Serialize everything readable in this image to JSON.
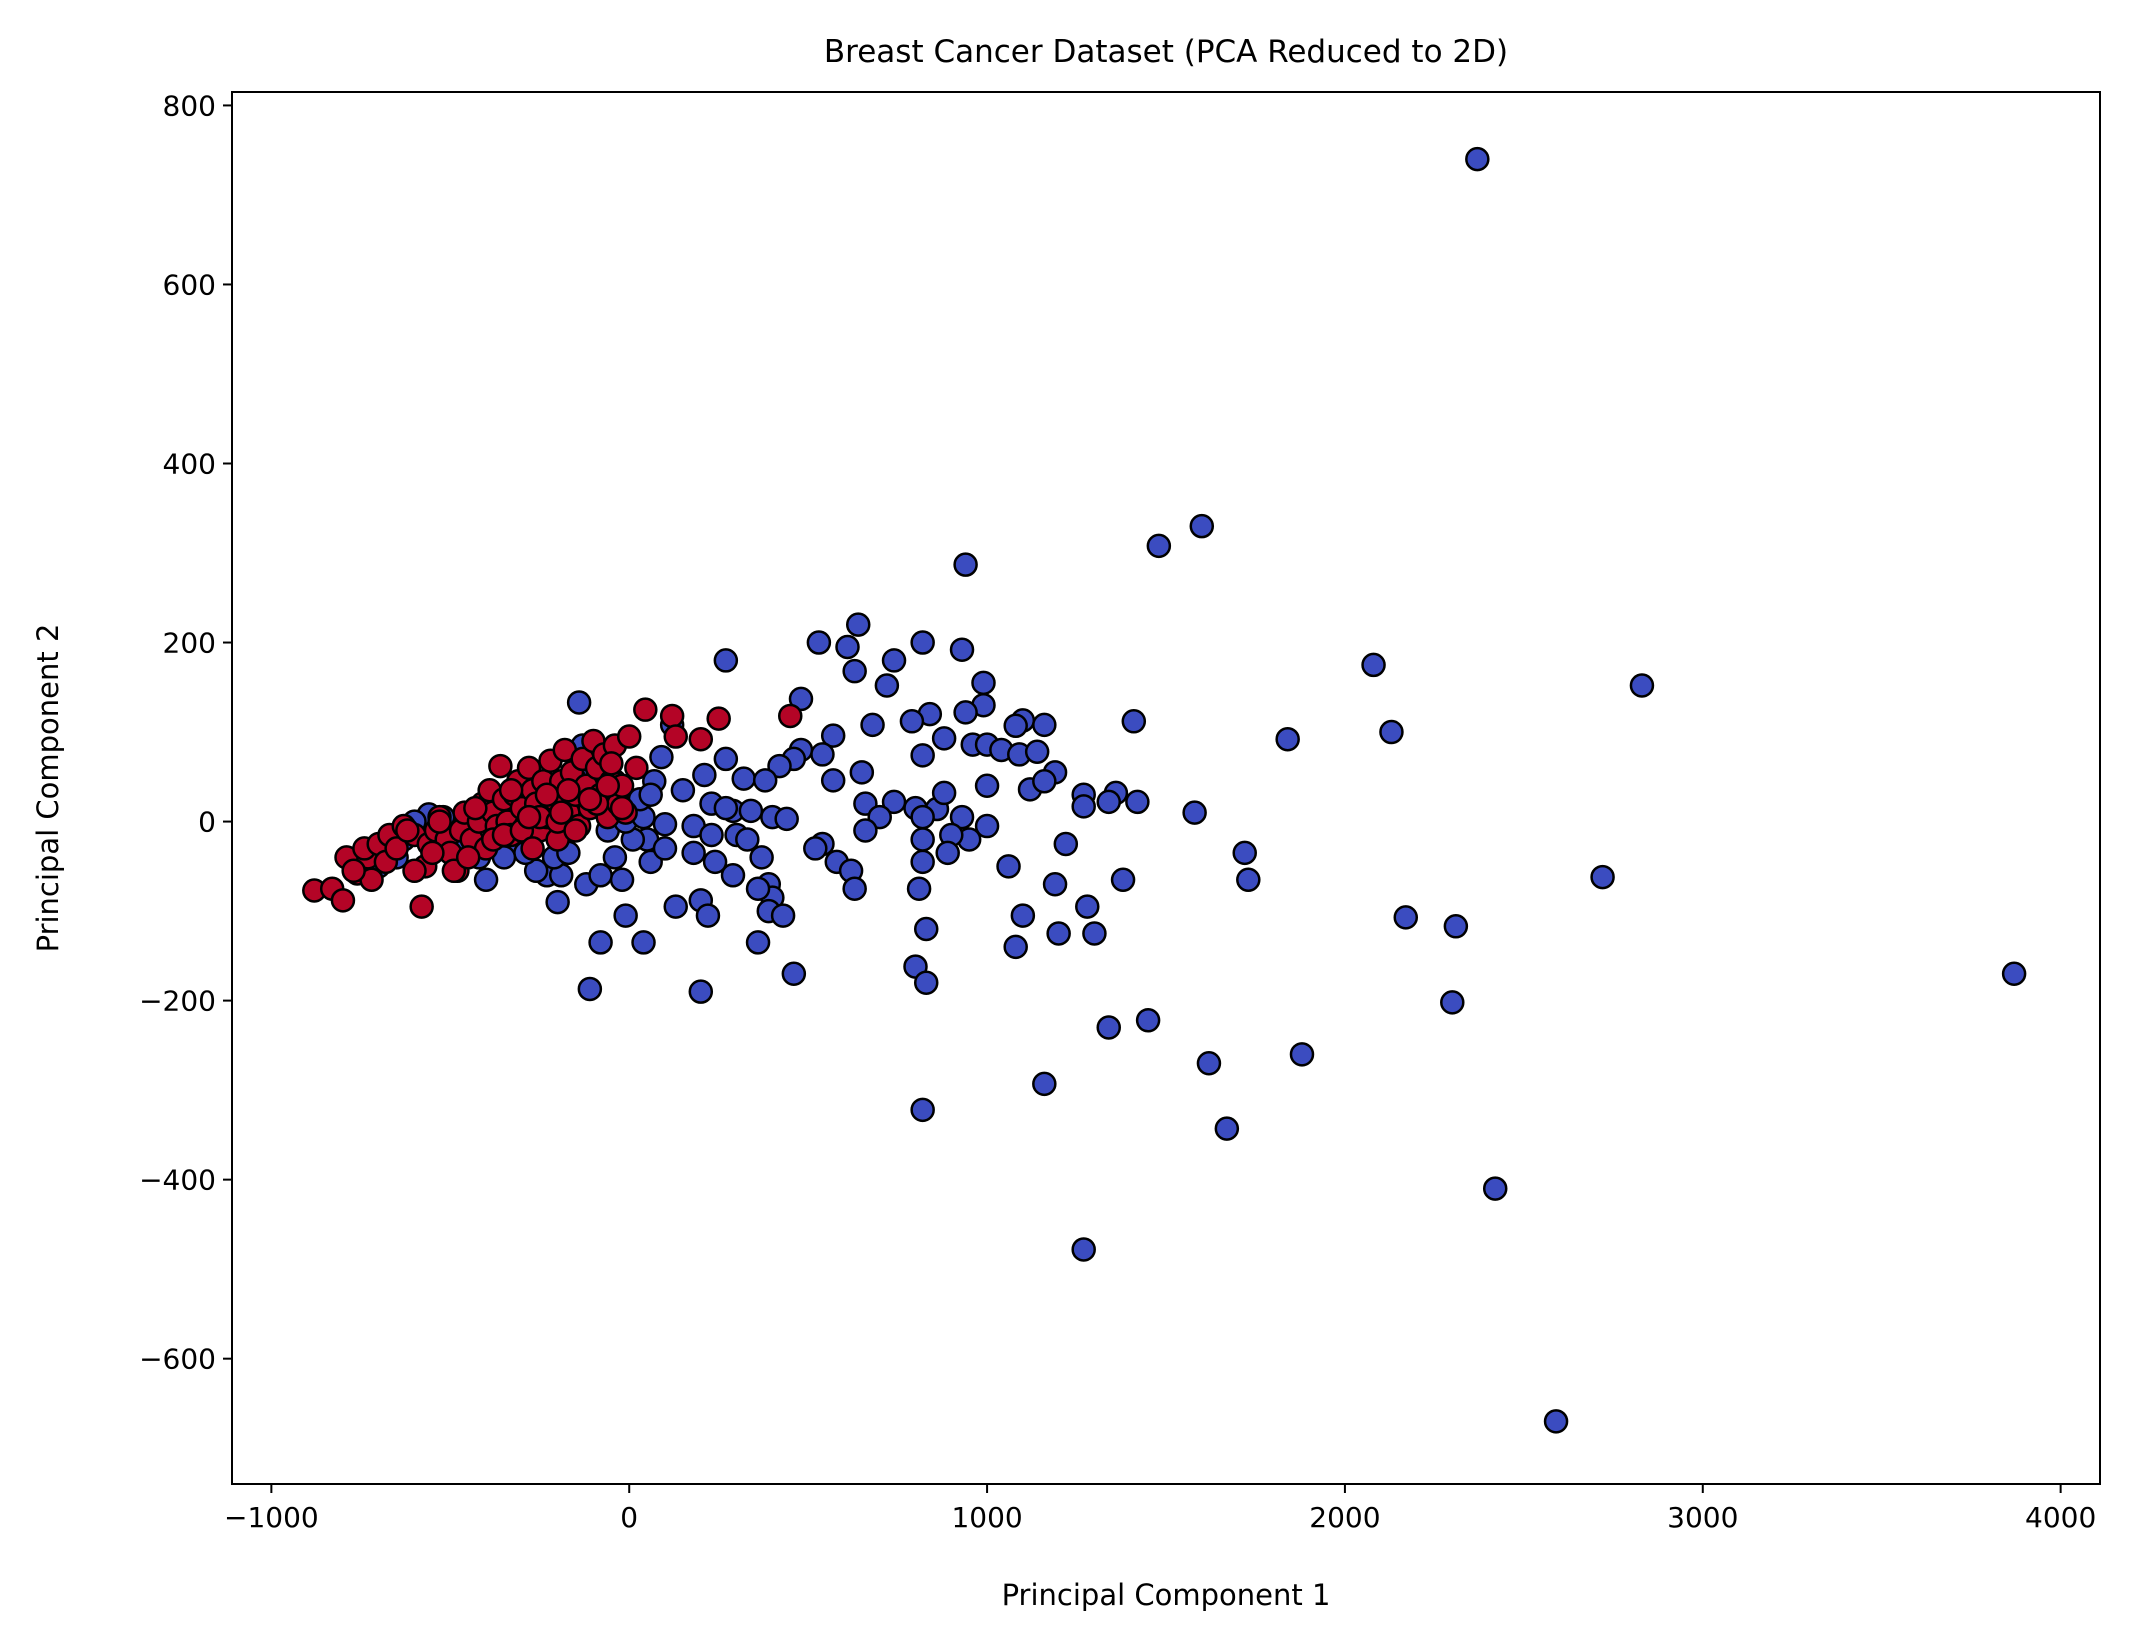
{
  "chart_data": {
    "type": "scatter",
    "title": "Breast Cancer Dataset (PCA Reduced to 2D)",
    "xlabel": "Principal Component 1",
    "ylabel": "Principal Component 2",
    "xlim": [
      -1110,
      4110
    ],
    "ylim": [
      -740,
      815
    ],
    "xticks": [
      -1000,
      0,
      1000,
      2000,
      3000,
      4000
    ],
    "yticks": [
      -600,
      -400,
      -200,
      0,
      200,
      400,
      600,
      800
    ],
    "xtick_labels": [
      "−1000",
      "0",
      "1000",
      "2000",
      "3000",
      "4000"
    ],
    "ytick_labels": [
      "−600",
      "−400",
      "−200",
      "0",
      "200",
      "400",
      "600",
      "800"
    ],
    "grid": false,
    "legend": "none",
    "series": [
      {
        "color": "#3b4cc0",
        "points": [
          [
            2370,
            740
          ],
          [
            1600,
            330
          ],
          [
            1480,
            308
          ],
          [
            940,
            287
          ],
          [
            640,
            220
          ],
          [
            530,
            200
          ],
          [
            610,
            195
          ],
          [
            820,
            200
          ],
          [
            930,
            192
          ],
          [
            740,
            180
          ],
          [
            270,
            180
          ],
          [
            630,
            168
          ],
          [
            720,
            152
          ],
          [
            990,
            155
          ],
          [
            2080,
            175
          ],
          [
            2830,
            152
          ],
          [
            480,
            137
          ],
          [
            990,
            130
          ],
          [
            940,
            122
          ],
          [
            840,
            120
          ],
          [
            680,
            108
          ],
          [
            790,
            112
          ],
          [
            1100,
            113
          ],
          [
            1080,
            107
          ],
          [
            1160,
            108
          ],
          [
            1410,
            112
          ],
          [
            2130,
            100
          ],
          [
            1840,
            92
          ],
          [
            880,
            93
          ],
          [
            960,
            86
          ],
          [
            1000,
            86
          ],
          [
            1040,
            80
          ],
          [
            1090,
            75
          ],
          [
            1140,
            78
          ],
          [
            820,
            74
          ],
          [
            570,
            96
          ],
          [
            480,
            80
          ],
          [
            540,
            75
          ],
          [
            460,
            70
          ],
          [
            420,
            62
          ],
          [
            270,
            70
          ],
          [
            650,
            55
          ],
          [
            1190,
            55
          ],
          [
            1000,
            40
          ],
          [
            1120,
            36
          ],
          [
            1160,
            45
          ],
          [
            1270,
            30
          ],
          [
            1360,
            32
          ],
          [
            1340,
            22
          ],
          [
            1420,
            22
          ],
          [
            740,
            22
          ],
          [
            660,
            20
          ],
          [
            800,
            15
          ],
          [
            860,
            14
          ],
          [
            880,
            32
          ],
          [
            570,
            46
          ],
          [
            320,
            48
          ],
          [
            380,
            46
          ],
          [
            230,
            20
          ],
          [
            290,
            12
          ],
          [
            340,
            12
          ],
          [
            210,
            52
          ],
          [
            150,
            35
          ],
          [
            90,
            72
          ],
          [
            70,
            45
          ],
          [
            -140,
            133
          ],
          [
            -100,
            60
          ],
          [
            -130,
            85
          ],
          [
            -90,
            70
          ],
          [
            -40,
            45
          ],
          [
            120,
            108
          ],
          [
            270,
            15
          ],
          [
            400,
            5
          ],
          [
            440,
            3
          ],
          [
            700,
            5
          ],
          [
            820,
            5
          ],
          [
            930,
            5
          ],
          [
            1000,
            -5
          ],
          [
            1580,
            10
          ],
          [
            1270,
            17
          ],
          [
            950,
            -20
          ],
          [
            900,
            -15
          ],
          [
            820,
            -20
          ],
          [
            540,
            -25
          ],
          [
            520,
            -30
          ],
          [
            300,
            -15
          ],
          [
            330,
            -20
          ],
          [
            180,
            -5
          ],
          [
            230,
            -15
          ],
          [
            100,
            -3
          ],
          [
            50,
            -20
          ],
          [
            60,
            -45
          ],
          [
            100,
            -30
          ],
          [
            180,
            -35
          ],
          [
            240,
            -45
          ],
          [
            290,
            -60
          ],
          [
            370,
            -40
          ],
          [
            390,
            -70
          ],
          [
            400,
            -85
          ],
          [
            360,
            -75
          ],
          [
            -230,
            -60
          ],
          [
            -260,
            -55
          ],
          [
            -190,
            -60
          ],
          [
            -210,
            -40
          ],
          [
            -120,
            -70
          ],
          [
            -20,
            -65
          ],
          [
            -80,
            -60
          ],
          [
            -40,
            -40
          ],
          [
            -400,
            -65
          ],
          [
            580,
            -45
          ],
          [
            620,
            -55
          ],
          [
            660,
            -10
          ],
          [
            630,
            -75
          ],
          [
            810,
            -75
          ],
          [
            820,
            -45
          ],
          [
            890,
            -35
          ],
          [
            1060,
            -50
          ],
          [
            1190,
            -70
          ],
          [
            1220,
            -25
          ],
          [
            1380,
            -65
          ],
          [
            1720,
            -35
          ],
          [
            1730,
            -65
          ],
          [
            2720,
            -62
          ],
          [
            2170,
            -107
          ],
          [
            2310,
            -117
          ],
          [
            3870,
            -170
          ],
          [
            2300,
            -202
          ],
          [
            200,
            -88
          ],
          [
            130,
            -95
          ],
          [
            -10,
            -105
          ],
          [
            220,
            -105
          ],
          [
            390,
            -100
          ],
          [
            430,
            -105
          ],
          [
            360,
            -135
          ],
          [
            40,
            -135
          ],
          [
            -80,
            -135
          ],
          [
            460,
            -170
          ],
          [
            830,
            -120
          ],
          [
            1100,
            -105
          ],
          [
            1200,
            -125
          ],
          [
            1280,
            -95
          ],
          [
            1300,
            -125
          ],
          [
            1080,
            -140
          ],
          [
            800,
            -162
          ],
          [
            830,
            -180
          ],
          [
            -110,
            -187
          ],
          [
            200,
            -190
          ],
          [
            1340,
            -230
          ],
          [
            1450,
            -222
          ],
          [
            1620,
            -270
          ],
          [
            1880,
            -260
          ],
          [
            820,
            -322
          ],
          [
            1160,
            -293
          ],
          [
            1670,
            -343
          ],
          [
            2420,
            -410
          ],
          [
            1270,
            -478
          ],
          [
            2590,
            -670
          ],
          [
            -200,
            -90
          ],
          [
            -170,
            -35
          ],
          [
            -60,
            -10
          ],
          [
            10,
            -20
          ],
          [
            -10,
            0
          ],
          [
            40,
            5
          ],
          [
            30,
            25
          ],
          [
            60,
            30
          ],
          [
            -50,
            20
          ],
          [
            -180,
            30
          ],
          [
            -240,
            10
          ],
          [
            -320,
            -30
          ],
          [
            -290,
            -35
          ],
          [
            -350,
            -40
          ],
          [
            -420,
            -40
          ],
          [
            -460,
            -30
          ],
          [
            -480,
            -10
          ],
          [
            -440,
            0
          ],
          [
            -520,
            5
          ],
          [
            -560,
            8
          ],
          [
            -600,
            0
          ],
          [
            -630,
            -20
          ],
          [
            -650,
            -40
          ],
          [
            -700,
            -50
          ]
        ]
      },
      {
        "color": "#b40426",
        "points": [
          [
            -880,
            -77
          ],
          [
            -830,
            -75
          ],
          [
            -800,
            -88
          ],
          [
            -760,
            -58
          ],
          [
            -730,
            -40
          ],
          [
            -720,
            -65
          ],
          [
            -790,
            -40
          ],
          [
            -770,
            -55
          ],
          [
            -740,
            -30
          ],
          [
            -700,
            -25
          ],
          [
            -680,
            -45
          ],
          [
            -670,
            -15
          ],
          [
            -650,
            -30
          ],
          [
            -630,
            -5
          ],
          [
            -600,
            -15
          ],
          [
            -580,
            -95
          ],
          [
            -570,
            -50
          ],
          [
            -560,
            -25
          ],
          [
            -540,
            -10
          ],
          [
            -530,
            5
          ],
          [
            -510,
            -20
          ],
          [
            -500,
            -35
          ],
          [
            -480,
            -55
          ],
          [
            -470,
            -10
          ],
          [
            -460,
            10
          ],
          [
            -440,
            -20
          ],
          [
            -420,
            0
          ],
          [
            -410,
            20
          ],
          [
            -400,
            -30
          ],
          [
            -390,
            35
          ],
          [
            -380,
            10
          ],
          [
            -370,
            -5
          ],
          [
            -360,
            62
          ],
          [
            -350,
            25
          ],
          [
            -340,
            0
          ],
          [
            -330,
            -15
          ],
          [
            -320,
            30
          ],
          [
            -310,
            45
          ],
          [
            -300,
            15
          ],
          [
            -290,
            -5
          ],
          [
            -280,
            60
          ],
          [
            -270,
            35
          ],
          [
            -260,
            20
          ],
          [
            -250,
            -10
          ],
          [
            -240,
            45
          ],
          [
            -230,
            5
          ],
          [
            -220,
            68
          ],
          [
            -210,
            25
          ],
          [
            -200,
            -20
          ],
          [
            -190,
            45
          ],
          [
            -180,
            80
          ],
          [
            -170,
            10
          ],
          [
            -160,
            55
          ],
          [
            -150,
            30
          ],
          [
            -140,
            -5
          ],
          [
            -130,
            70
          ],
          [
            -120,
            40
          ],
          [
            -110,
            15
          ],
          [
            -100,
            90
          ],
          [
            -90,
            60
          ],
          [
            -80,
            30
          ],
          [
            -70,
            75
          ],
          [
            -60,
            5
          ],
          [
            -50,
            45
          ],
          [
            -40,
            85
          ],
          [
            -30,
            20
          ],
          [
            -20,
            40
          ],
          [
            -10,
            10
          ],
          [
            0,
            95
          ],
          [
            20,
            60
          ],
          [
            45,
            125
          ],
          [
            120,
            118
          ],
          [
            130,
            95
          ],
          [
            200,
            92
          ],
          [
            250,
            115
          ],
          [
            450,
            118
          ],
          [
            -620,
            -10
          ],
          [
            -600,
            -55
          ],
          [
            -550,
            -35
          ],
          [
            -530,
            0
          ],
          [
            -490,
            -55
          ],
          [
            -450,
            -40
          ],
          [
            -430,
            15
          ],
          [
            -380,
            -20
          ],
          [
            -350,
            -15
          ],
          [
            -330,
            35
          ],
          [
            -300,
            -10
          ],
          [
            -270,
            -30
          ],
          [
            -250,
            5
          ],
          [
            -230,
            30
          ],
          [
            -200,
            0
          ],
          [
            -190,
            10
          ],
          [
            -170,
            35
          ],
          [
            -150,
            -10
          ],
          [
            -90,
            20
          ],
          [
            -60,
            40
          ],
          [
            -20,
            15
          ],
          [
            -50,
            65
          ],
          [
            -110,
            25
          ],
          [
            -280,
            5
          ]
        ]
      }
    ]
  }
}
